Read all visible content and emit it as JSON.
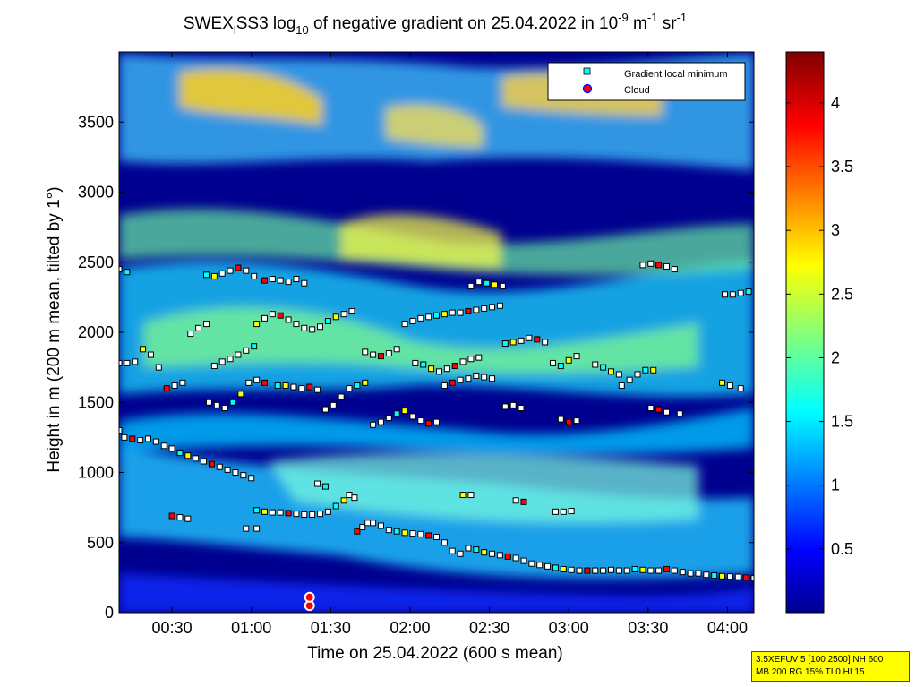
{
  "chart_data": {
    "type": "heatmap",
    "title_parts": {
      "a": "SWEX",
      "a_sub": "l",
      "b": "SS3 log",
      "b_sub": "10",
      "c": " of negative gradient on 25.04.2022 in 10",
      "c_sup": "-9",
      "d": " m",
      "d_sup": "-1",
      "e": " sr",
      "e_sup": "-1"
    },
    "xlabel": "Time on 25.04.2022 (600 s mean)",
    "ylabel": "Height in m (200 m mean, tilted by 1°)",
    "xlim_minutes": [
      10,
      250
    ],
    "ylim": [
      0,
      4000
    ],
    "x_ticks": [
      {
        "minutes": 30,
        "label": "00:30"
      },
      {
        "minutes": 60,
        "label": "01:00"
      },
      {
        "minutes": 90,
        "label": "01:30"
      },
      {
        "minutes": 120,
        "label": "02:00"
      },
      {
        "minutes": 150,
        "label": "02:30"
      },
      {
        "minutes": 180,
        "label": "03:00"
      },
      {
        "minutes": 210,
        "label": "03:30"
      },
      {
        "minutes": 240,
        "label": "04:00"
      }
    ],
    "y_ticks": [
      0,
      500,
      1000,
      1500,
      2000,
      2500,
      3000,
      3500
    ],
    "colorbar": {
      "range": [
        0,
        4.4
      ],
      "ticks": [
        0.5,
        1,
        1.5,
        2,
        2.5,
        3,
        3.5,
        4
      ],
      "tick_labels": [
        "0.5",
        "1",
        "1.5",
        "2",
        "2.5",
        "3",
        "3.5",
        "4"
      ],
      "colormap": "jet"
    },
    "legend": {
      "placement": "top-right",
      "entries": [
        {
          "label": "Gradient local minimum",
          "marker": "square",
          "color": "#00ffff"
        },
        {
          "label": "Cloud",
          "marker": "circle",
          "color": "#ff0000"
        }
      ]
    },
    "series": [
      {
        "name": "Gradient local minimum",
        "points": [
          [
            10,
            1300
          ],
          [
            12,
            1250
          ],
          [
            15,
            1240
          ],
          [
            18,
            1230
          ],
          [
            21,
            1240
          ],
          [
            24,
            1220
          ],
          [
            27,
            1190
          ],
          [
            30,
            1170
          ],
          [
            33,
            1140
          ],
          [
            36,
            1120
          ],
          [
            39,
            1100
          ],
          [
            42,
            1080
          ],
          [
            45,
            1060
          ],
          [
            48,
            1040
          ],
          [
            51,
            1020
          ],
          [
            54,
            1000
          ],
          [
            57,
            980
          ],
          [
            60,
            960
          ],
          [
            62,
            730
          ],
          [
            65,
            720
          ],
          [
            68,
            715
          ],
          [
            71,
            715
          ],
          [
            74,
            710
          ],
          [
            77,
            705
          ],
          [
            80,
            700
          ],
          [
            83,
            700
          ],
          [
            86,
            705
          ],
          [
            89,
            720
          ],
          [
            92,
            760
          ],
          [
            95,
            800
          ],
          [
            97,
            840
          ],
          [
            99,
            820
          ],
          [
            100,
            580
          ],
          [
            102,
            610
          ],
          [
            104,
            640
          ],
          [
            106,
            640
          ],
          [
            109,
            620
          ],
          [
            112,
            590
          ],
          [
            115,
            580
          ],
          [
            118,
            570
          ],
          [
            121,
            565
          ],
          [
            124,
            560
          ],
          [
            127,
            550
          ],
          [
            130,
            540
          ],
          [
            133,
            500
          ],
          [
            136,
            440
          ],
          [
            139,
            420
          ],
          [
            142,
            460
          ],
          [
            145,
            450
          ],
          [
            148,
            430
          ],
          [
            151,
            420
          ],
          [
            154,
            410
          ],
          [
            157,
            400
          ],
          [
            160,
            390
          ],
          [
            163,
            370
          ],
          [
            166,
            350
          ],
          [
            169,
            340
          ],
          [
            172,
            330
          ],
          [
            175,
            320
          ],
          [
            178,
            310
          ],
          [
            181,
            305
          ],
          [
            184,
            300
          ],
          [
            187,
            300
          ],
          [
            190,
            300
          ],
          [
            193,
            300
          ],
          [
            196,
            305
          ],
          [
            199,
            300
          ],
          [
            202,
            300
          ],
          [
            205,
            310
          ],
          [
            208,
            305
          ],
          [
            211,
            300
          ],
          [
            214,
            300
          ],
          [
            217,
            310
          ],
          [
            220,
            300
          ],
          [
            223,
            290
          ],
          [
            226,
            280
          ],
          [
            229,
            280
          ],
          [
            232,
            270
          ],
          [
            235,
            265
          ],
          [
            238,
            260
          ],
          [
            241,
            258
          ],
          [
            244,
            255
          ],
          [
            247,
            250
          ],
          [
            250,
            245
          ],
          [
            10,
            1780
          ],
          [
            13,
            1780
          ],
          [
            16,
            1790
          ],
          [
            10,
            2450
          ],
          [
            13,
            2430
          ],
          [
            19,
            1880
          ],
          [
            22,
            1840
          ],
          [
            25,
            1750
          ],
          [
            28,
            1600
          ],
          [
            31,
            1620
          ],
          [
            34,
            1640
          ],
          [
            37,
            1990
          ],
          [
            40,
            2030
          ],
          [
            43,
            2060
          ],
          [
            43,
            2410
          ],
          [
            46,
            2400
          ],
          [
            49,
            2420
          ],
          [
            52,
            2440
          ],
          [
            55,
            2460
          ],
          [
            58,
            2440
          ],
          [
            61,
            2400
          ],
          [
            44,
            1500
          ],
          [
            47,
            1480
          ],
          [
            50,
            1460
          ],
          [
            53,
            1500
          ],
          [
            56,
            1560
          ],
          [
            59,
            1640
          ],
          [
            62,
            1660
          ],
          [
            65,
            1640
          ],
          [
            46,
            1760
          ],
          [
            49,
            1790
          ],
          [
            52,
            1810
          ],
          [
            55,
            1840
          ],
          [
            58,
            1870
          ],
          [
            61,
            1900
          ],
          [
            62,
            2060
          ],
          [
            65,
            2100
          ],
          [
            68,
            2130
          ],
          [
            71,
            2120
          ],
          [
            74,
            2090
          ],
          [
            77,
            2060
          ],
          [
            80,
            2030
          ],
          [
            83,
            2020
          ],
          [
            86,
            2040
          ],
          [
            89,
            2080
          ],
          [
            92,
            2110
          ],
          [
            95,
            2130
          ],
          [
            98,
            2150
          ],
          [
            65,
            2370
          ],
          [
            68,
            2380
          ],
          [
            71,
            2370
          ],
          [
            74,
            2360
          ],
          [
            77,
            2380
          ],
          [
            80,
            2350
          ],
          [
            70,
            1620
          ],
          [
            73,
            1620
          ],
          [
            76,
            1610
          ],
          [
            79,
            1600
          ],
          [
            82,
            1610
          ],
          [
            85,
            1590
          ],
          [
            88,
            1450
          ],
          [
            91,
            1480
          ],
          [
            94,
            1540
          ],
          [
            97,
            1600
          ],
          [
            100,
            1620
          ],
          [
            103,
            1640
          ],
          [
            103,
            1860
          ],
          [
            106,
            1840
          ],
          [
            109,
            1830
          ],
          [
            112,
            1850
          ],
          [
            115,
            1880
          ],
          [
            106,
            1340
          ],
          [
            109,
            1360
          ],
          [
            112,
            1390
          ],
          [
            115,
            1420
          ],
          [
            118,
            1440
          ],
          [
            121,
            1400
          ],
          [
            124,
            1370
          ],
          [
            127,
            1350
          ],
          [
            130,
            1360
          ],
          [
            118,
            2060
          ],
          [
            121,
            2080
          ],
          [
            124,
            2100
          ],
          [
            127,
            2110
          ],
          [
            130,
            2120
          ],
          [
            133,
            2130
          ],
          [
            136,
            2140
          ],
          [
            139,
            2140
          ],
          [
            142,
            2150
          ],
          [
            145,
            2160
          ],
          [
            148,
            2170
          ],
          [
            151,
            2180
          ],
          [
            154,
            2190
          ],
          [
            122,
            1780
          ],
          [
            125,
            1770
          ],
          [
            128,
            1740
          ],
          [
            131,
            1720
          ],
          [
            134,
            1740
          ],
          [
            137,
            1760
          ],
          [
            140,
            1790
          ],
          [
            143,
            1810
          ],
          [
            146,
            1820
          ],
          [
            143,
            2330
          ],
          [
            146,
            2360
          ],
          [
            149,
            2350
          ],
          [
            152,
            2340
          ],
          [
            155,
            2330
          ],
          [
            133,
            1620
          ],
          [
            136,
            1640
          ],
          [
            139,
            1660
          ],
          [
            142,
            1670
          ],
          [
            145,
            1690
          ],
          [
            148,
            1680
          ],
          [
            151,
            1670
          ],
          [
            156,
            1920
          ],
          [
            159,
            1930
          ],
          [
            162,
            1940
          ],
          [
            165,
            1960
          ],
          [
            168,
            1950
          ],
          [
            171,
            1930
          ],
          [
            156,
            1470
          ],
          [
            159,
            1480
          ],
          [
            162,
            1460
          ],
          [
            174,
            1780
          ],
          [
            177,
            1760
          ],
          [
            180,
            1800
          ],
          [
            183,
            1830
          ],
          [
            177,
            1380
          ],
          [
            180,
            1360
          ],
          [
            183,
            1370
          ],
          [
            175,
            720
          ],
          [
            178,
            720
          ],
          [
            181,
            725
          ],
          [
            190,
            1770
          ],
          [
            193,
            1750
          ],
          [
            196,
            1720
          ],
          [
            199,
            1700
          ],
          [
            211,
            1460
          ],
          [
            214,
            1450
          ],
          [
            217,
            1430
          ],
          [
            222,
            1420
          ],
          [
            200,
            1620
          ],
          [
            203,
            1660
          ],
          [
            206,
            1700
          ],
          [
            209,
            1730
          ],
          [
            212,
            1730
          ],
          [
            208,
            2480
          ],
          [
            211,
            2490
          ],
          [
            214,
            2480
          ],
          [
            217,
            2470
          ],
          [
            220,
            2450
          ],
          [
            239,
            2270
          ],
          [
            242,
            2270
          ],
          [
            245,
            2280
          ],
          [
            248,
            2290
          ],
          [
            238,
            1640
          ],
          [
            241,
            1620
          ],
          [
            245,
            1600
          ],
          [
            30,
            690
          ],
          [
            33,
            680
          ],
          [
            36,
            670
          ],
          [
            58,
            600
          ],
          [
            62,
            600
          ],
          [
            85,
            920
          ],
          [
            88,
            900
          ],
          [
            140,
            840
          ],
          [
            143,
            840
          ],
          [
            160,
            800
          ],
          [
            163,
            790
          ]
        ]
      },
      {
        "name": "Cloud",
        "points": [
          [
            82,
            50
          ],
          [
            82,
            110
          ]
        ]
      }
    ]
  },
  "info_box": {
    "line1": "3.5XEFUV 5 [100 2500] NH 600",
    "line2": "MB 200 RG 15% TI 0 HI 15"
  }
}
